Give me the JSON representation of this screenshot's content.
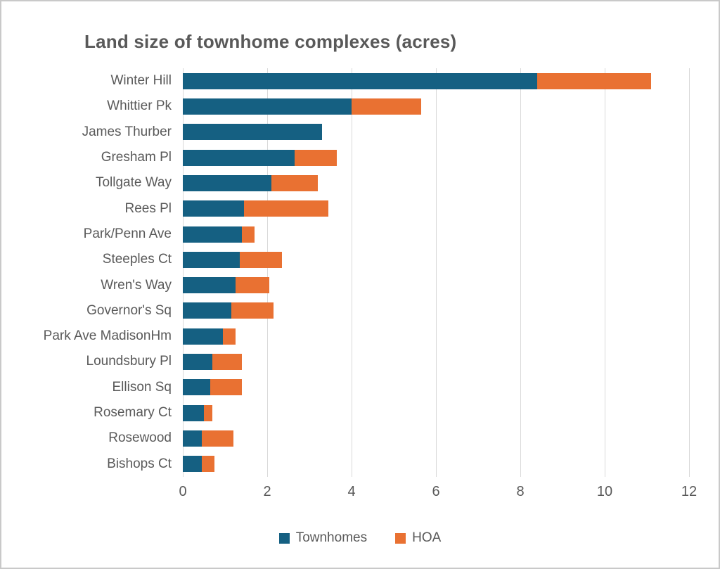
{
  "chart_data": {
    "type": "bar",
    "orientation": "horizontal",
    "stacked": true,
    "title": "Land size of townhome complexes (acres)",
    "categories": [
      "Winter Hill",
      "Whittier Pk",
      "James Thurber",
      "Gresham Pl",
      "Tollgate Way",
      "Rees Pl",
      "Park/Penn Ave",
      "Steeples Ct",
      "Wren's Way",
      "Governor's Sq",
      "Park Ave MadisonHm",
      "Loundsbury Pl",
      "Ellison Sq",
      "Rosemary Ct",
      "Rosewood",
      "Bishops Ct"
    ],
    "series": [
      {
        "name": "Townhomes",
        "color": "#156082",
        "values": [
          8.4,
          4.0,
          3.3,
          2.65,
          2.1,
          1.45,
          1.4,
          1.35,
          1.25,
          1.15,
          0.95,
          0.7,
          0.65,
          0.5,
          0.45,
          0.45
        ]
      },
      {
        "name": "HOA",
        "color": "#E97132",
        "values": [
          2.7,
          1.65,
          0,
          1.0,
          1.1,
          2.0,
          0.3,
          1.0,
          0.8,
          1.0,
          0.3,
          0.7,
          0.75,
          0.2,
          0.75,
          0.3
        ]
      }
    ],
    "xlim": [
      0,
      12
    ],
    "xticks": [
      0,
      2,
      4,
      6,
      8,
      10,
      12
    ],
    "grid": "vertical",
    "legend_position": "bottom",
    "colors": {
      "text": "#595959",
      "gridline": "#D9D9D9",
      "background": "#FFFFFF",
      "border": "#C9C9C9"
    }
  }
}
